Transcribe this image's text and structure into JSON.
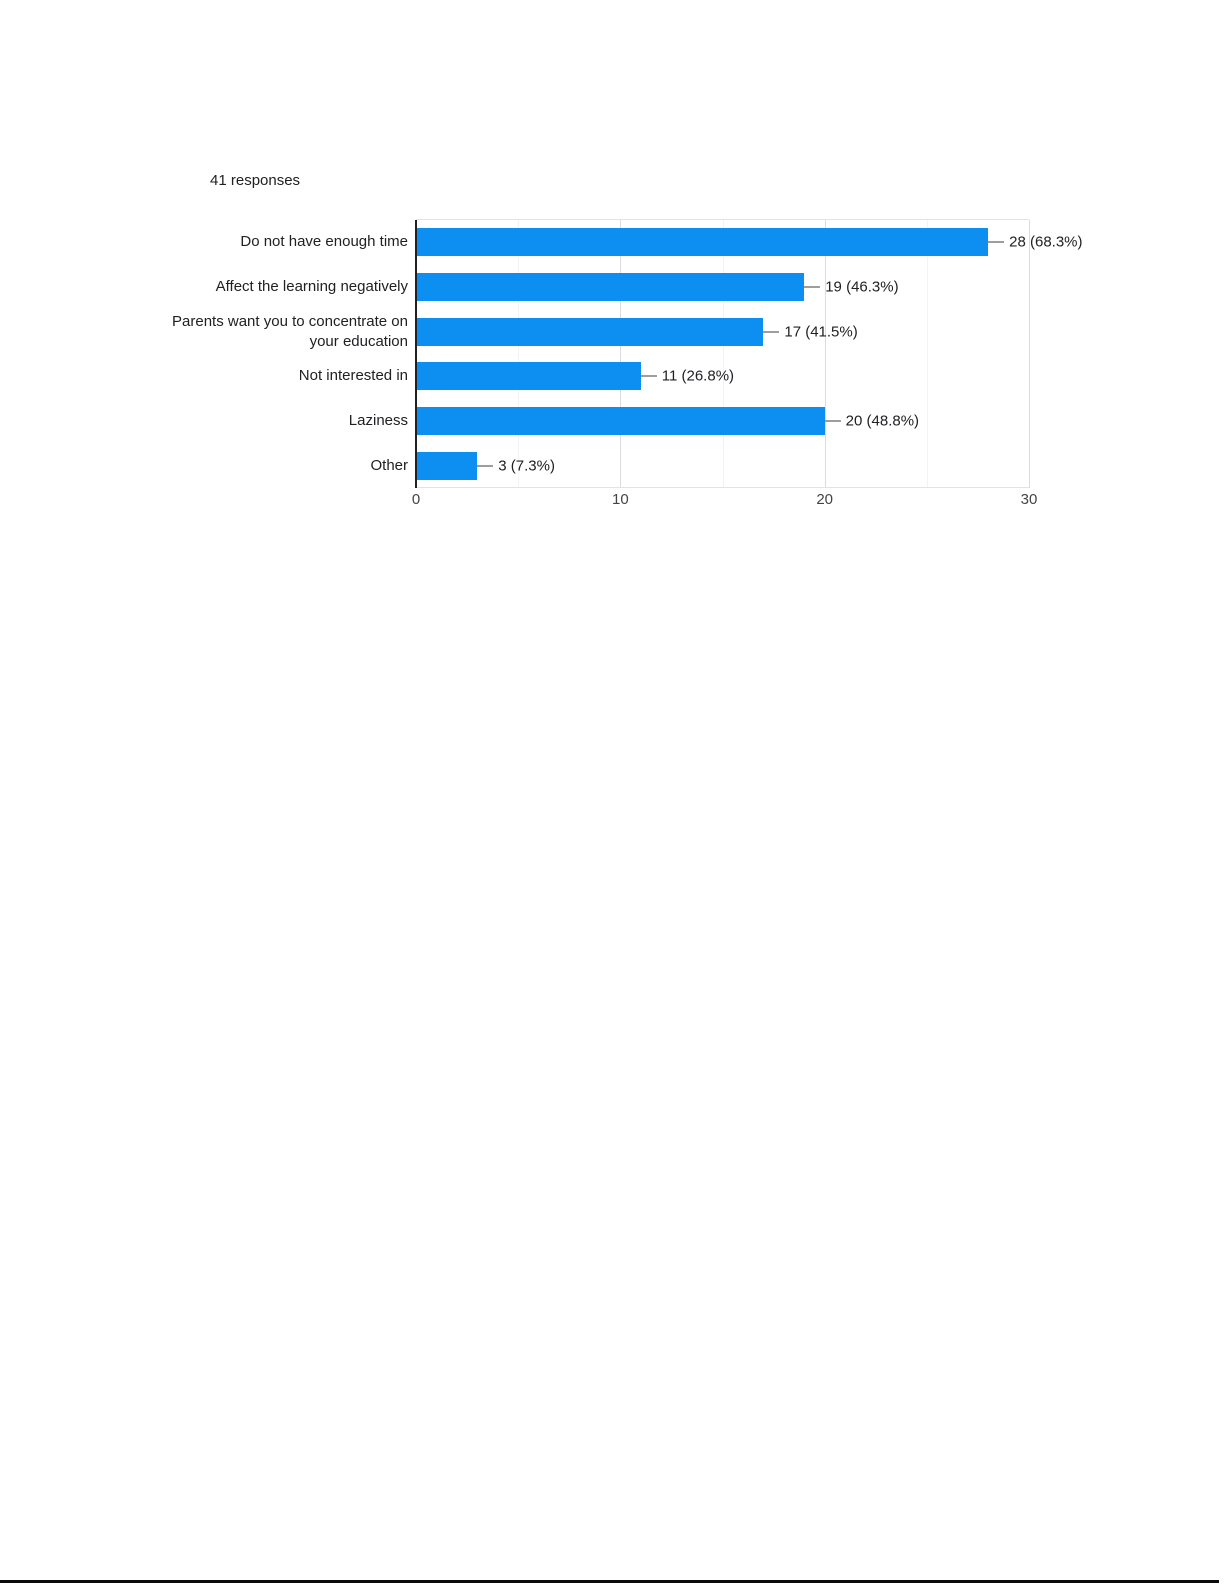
{
  "header": {
    "responses_count": "41 responses"
  },
  "chart_data": {
    "type": "bar",
    "orientation": "horizontal",
    "title": "",
    "xlabel": "",
    "ylabel": "",
    "categories": [
      "Do not have enough time",
      "Affect the learning negatively",
      "Parents want you to concentrate on your education",
      "Not interested in",
      "Laziness",
      "Other"
    ],
    "values": [
      28,
      19,
      17,
      11,
      20,
      3
    ],
    "value_labels": [
      "28 (68.3%)",
      "19 (46.3%)",
      "17 (41.5%)",
      "11 (26.8%)",
      "20 (48.8%)",
      "3 (7.3%)"
    ],
    "xlim": [
      0,
      30
    ],
    "x_ticks": [
      0,
      10,
      20,
      30
    ],
    "minor_gridlines": [
      5,
      15,
      25
    ],
    "grid": true,
    "legend": "none",
    "bar_color": "#0d8ff2",
    "axis_color": "#212121",
    "major_gridline_color": "#dadce0",
    "minor_gridline_color": "#f1f3f4",
    "connector_color": "#9e9e9e",
    "label_color": "#202124",
    "tick_color": "#444444"
  }
}
